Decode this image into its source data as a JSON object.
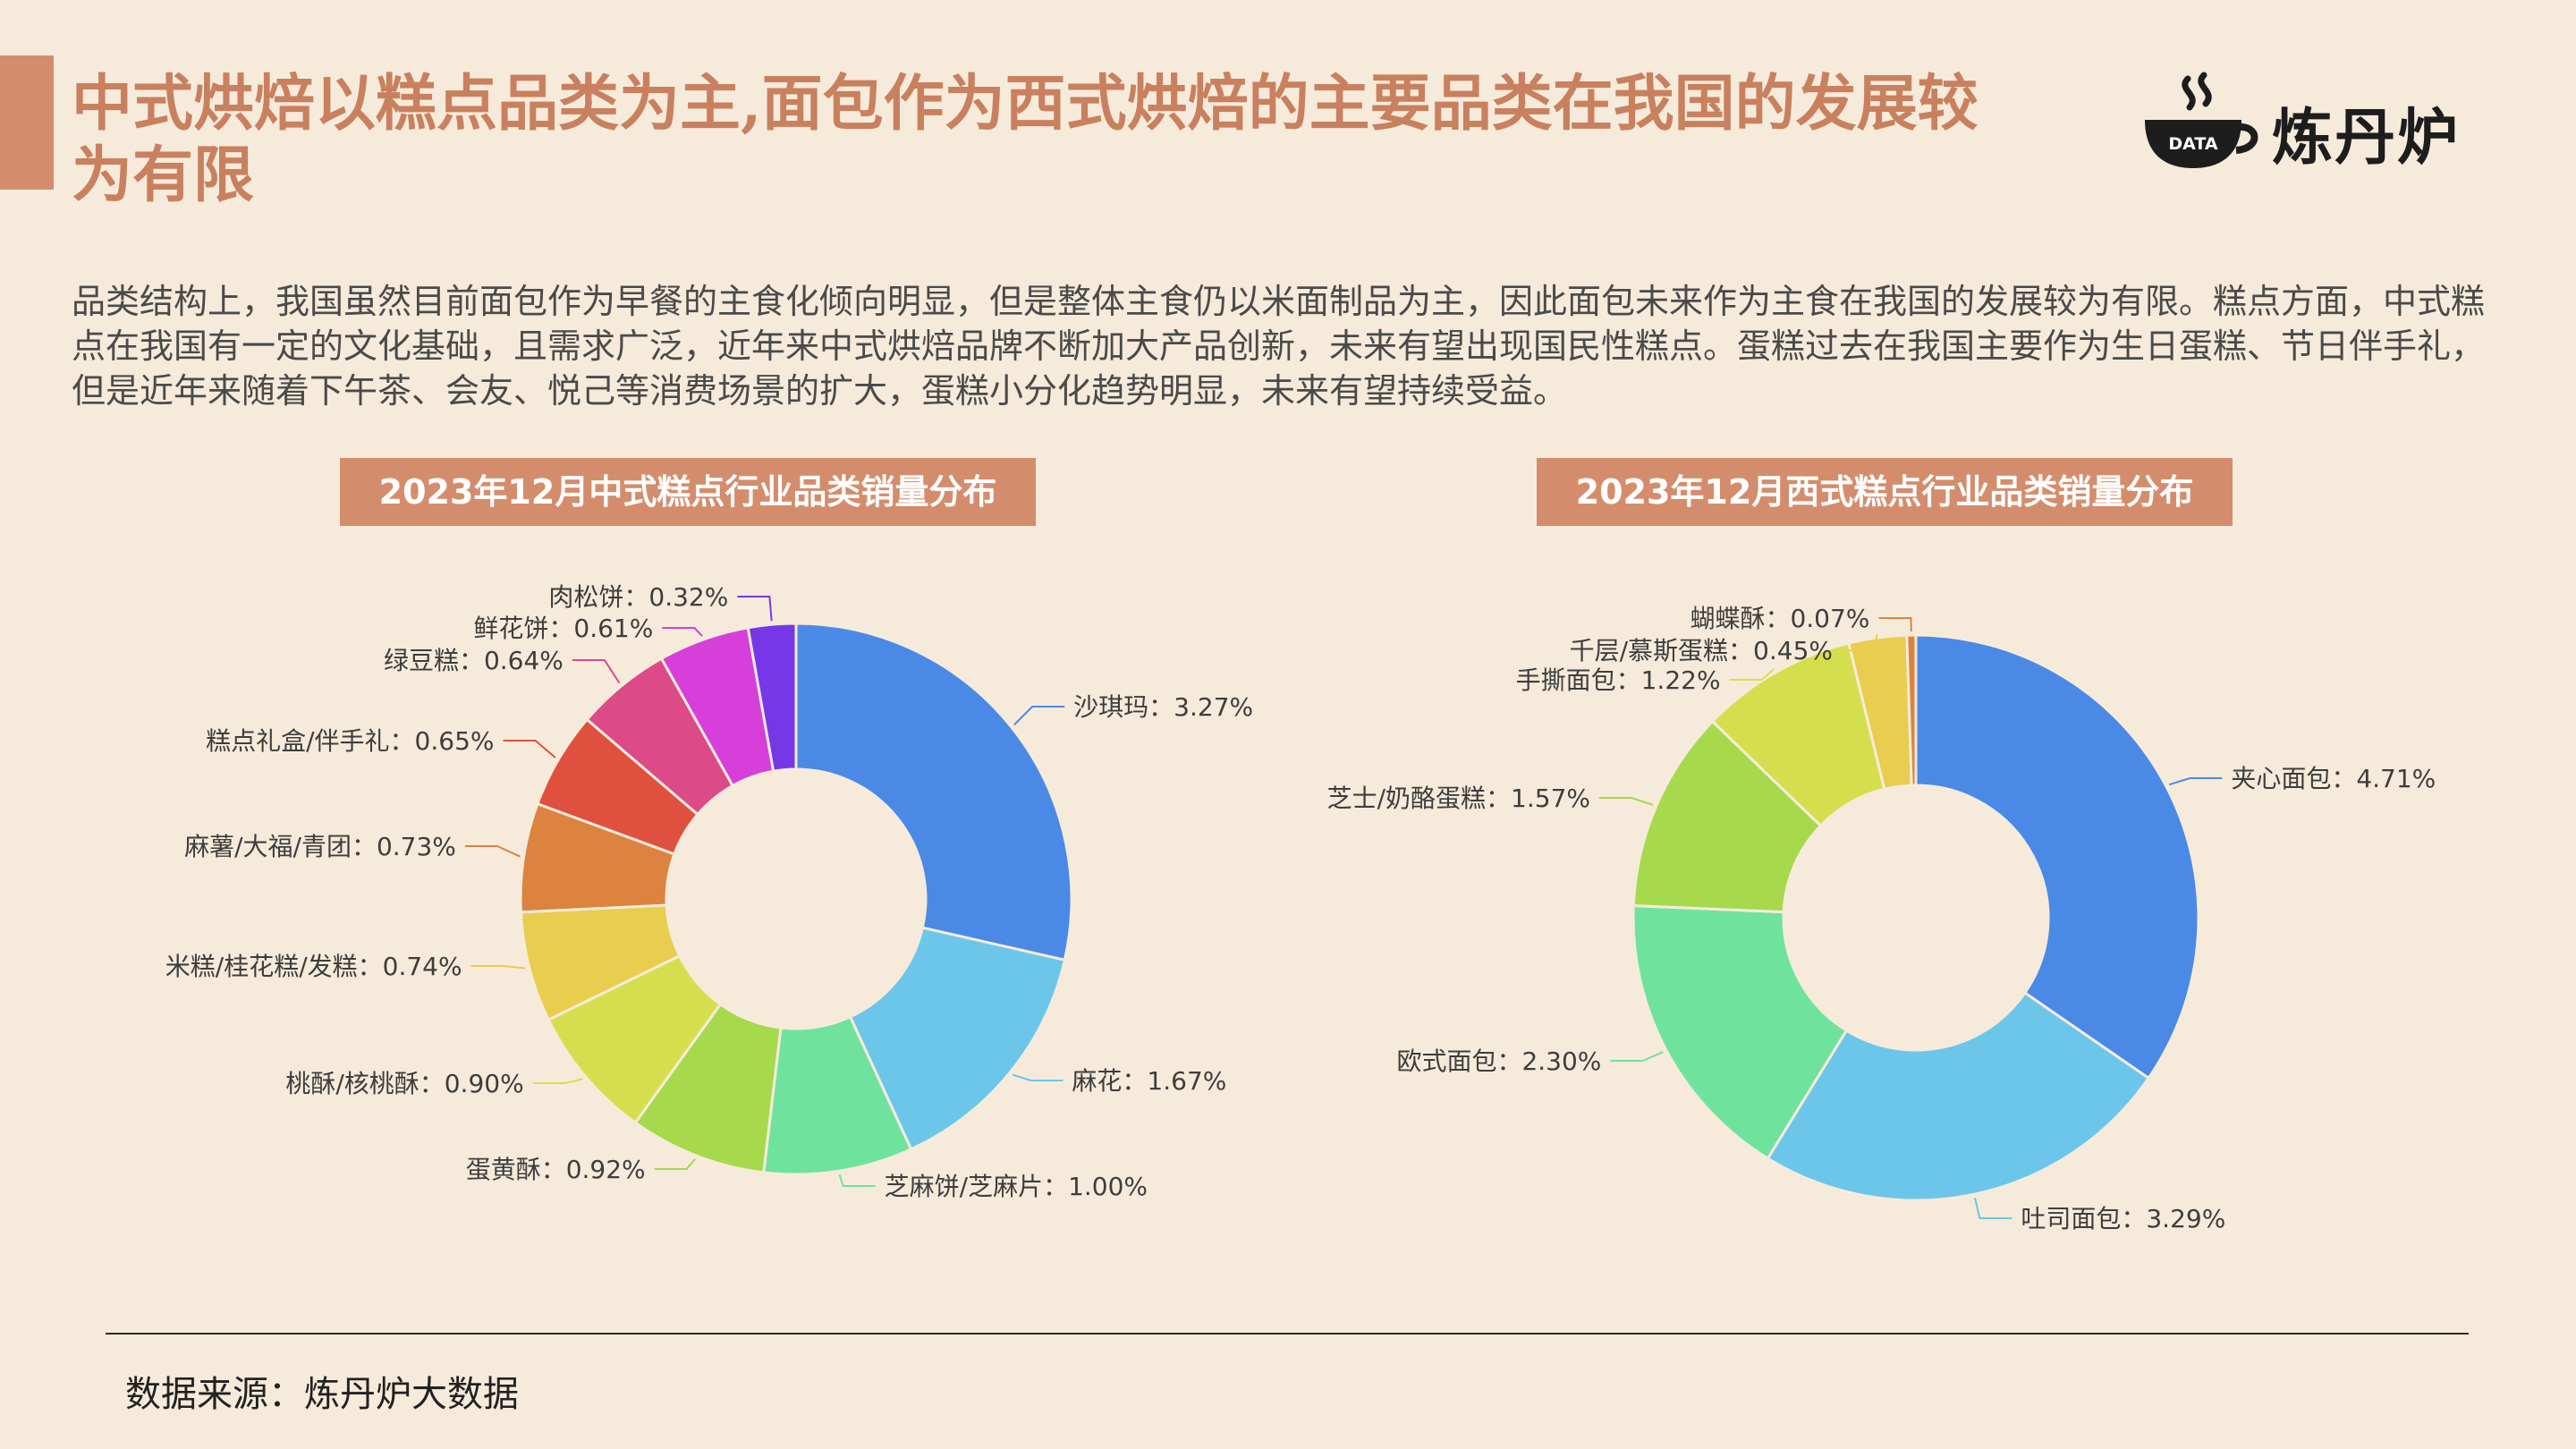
{
  "header": {
    "title": "中式烘焙以糕点品类为主,面包作为西式烘焙的主要品类在我国的发展较为有限",
    "logo_text": "炼丹炉",
    "logo_badge": "DATA"
  },
  "description": "品类结构上，我国虽然目前面包作为早餐的主食化倾向明显，但是整体主食仍以米面制品为主，因此面包未来作为主食在我国的发展较为有限。糕点方面，中式糕点在我国有一定的文化基础，且需求广泛，近年来中式烘焙品牌不断加大产品创新，未来有望出现国民性糕点。蛋糕过去在我国主要作为生日蛋糕、节日伴手礼，但是近年来随着下午茶、会友、悦己等消费场景的扩大，蛋糕小分化趋势明显，未来有望持续受益。",
  "footer": {
    "source": "数据来源：炼丹炉大数据"
  },
  "chart_data": [
    {
      "type": "pie",
      "title": "2023年12月中式糕点行业品类销量分布",
      "unit": "%",
      "slices": [
        {
          "label": "沙琪玛",
          "value": 3.27,
          "text": "沙琪玛：3.27%",
          "color": "#4a8ae6"
        },
        {
          "label": "麻花",
          "value": 1.67,
          "text": "麻花：1.67%",
          "color": "#6cc6ea"
        },
        {
          "label": "芝麻饼/芝麻片",
          "value": 1.0,
          "text": "芝麻饼/芝麻片：1.00%",
          "color": "#6fe39e"
        },
        {
          "label": "蛋黄酥",
          "value": 0.92,
          "text": "蛋黄酥：0.92%",
          "color": "#a6d94c"
        },
        {
          "label": "桃酥/核桃酥",
          "value": 0.9,
          "text": "桃酥/核桃酥：0.90%",
          "color": "#d5df4e"
        },
        {
          "label": "米糕/桂花糕/发糕",
          "value": 0.74,
          "text": "米糕/桂花糕/发糕：0.74%",
          "color": "#e8cd4e"
        },
        {
          "label": "麻薯/大福/青团",
          "value": 0.73,
          "text": "麻薯/大福/青团：0.73%",
          "color": "#dc8340"
        },
        {
          "label": "糕点礼盒/伴手礼",
          "value": 0.65,
          "text": "糕点礼盒/伴手礼：0.65%",
          "color": "#e0503f"
        },
        {
          "label": "绿豆糕",
          "value": 0.64,
          "text": "绿豆糕：0.64%",
          "color": "#dc4a88"
        },
        {
          "label": "鲜花饼",
          "value": 0.61,
          "text": "鲜花饼：0.61%",
          "color": "#d63fd9"
        },
        {
          "label": "肉松饼",
          "value": 0.32,
          "text": "肉松饼：0.32%",
          "color": "#7637e6"
        }
      ]
    },
    {
      "type": "pie",
      "title": "2023年12月西式糕点行业品类销量分布",
      "unit": "%",
      "slices": [
        {
          "label": "夹心面包",
          "value": 4.71,
          "text": "夹心面包：4.71%",
          "color": "#4a8ae6"
        },
        {
          "label": "吐司面包",
          "value": 3.29,
          "text": "吐司面包：3.29%",
          "color": "#6cc6ea"
        },
        {
          "label": "欧式面包",
          "value": 2.3,
          "text": "欧式面包：2.30%",
          "color": "#6fe39e"
        },
        {
          "label": "芝士/奶酪蛋糕",
          "value": 1.57,
          "text": "芝士/奶酪蛋糕：1.57%",
          "color": "#a6d94c"
        },
        {
          "label": "手撕面包",
          "value": 1.22,
          "text": "手撕面包：1.22%",
          "color": "#d5df4e"
        },
        {
          "label": "千层/慕斯蛋糕",
          "value": 0.45,
          "text": "千层/慕斯蛋糕：0.45%",
          "color": "#e8cd4e"
        },
        {
          "label": "蝴蝶酥",
          "value": 0.07,
          "text": "蝴蝶酥：0.07%",
          "color": "#dc8340"
        }
      ]
    }
  ]
}
